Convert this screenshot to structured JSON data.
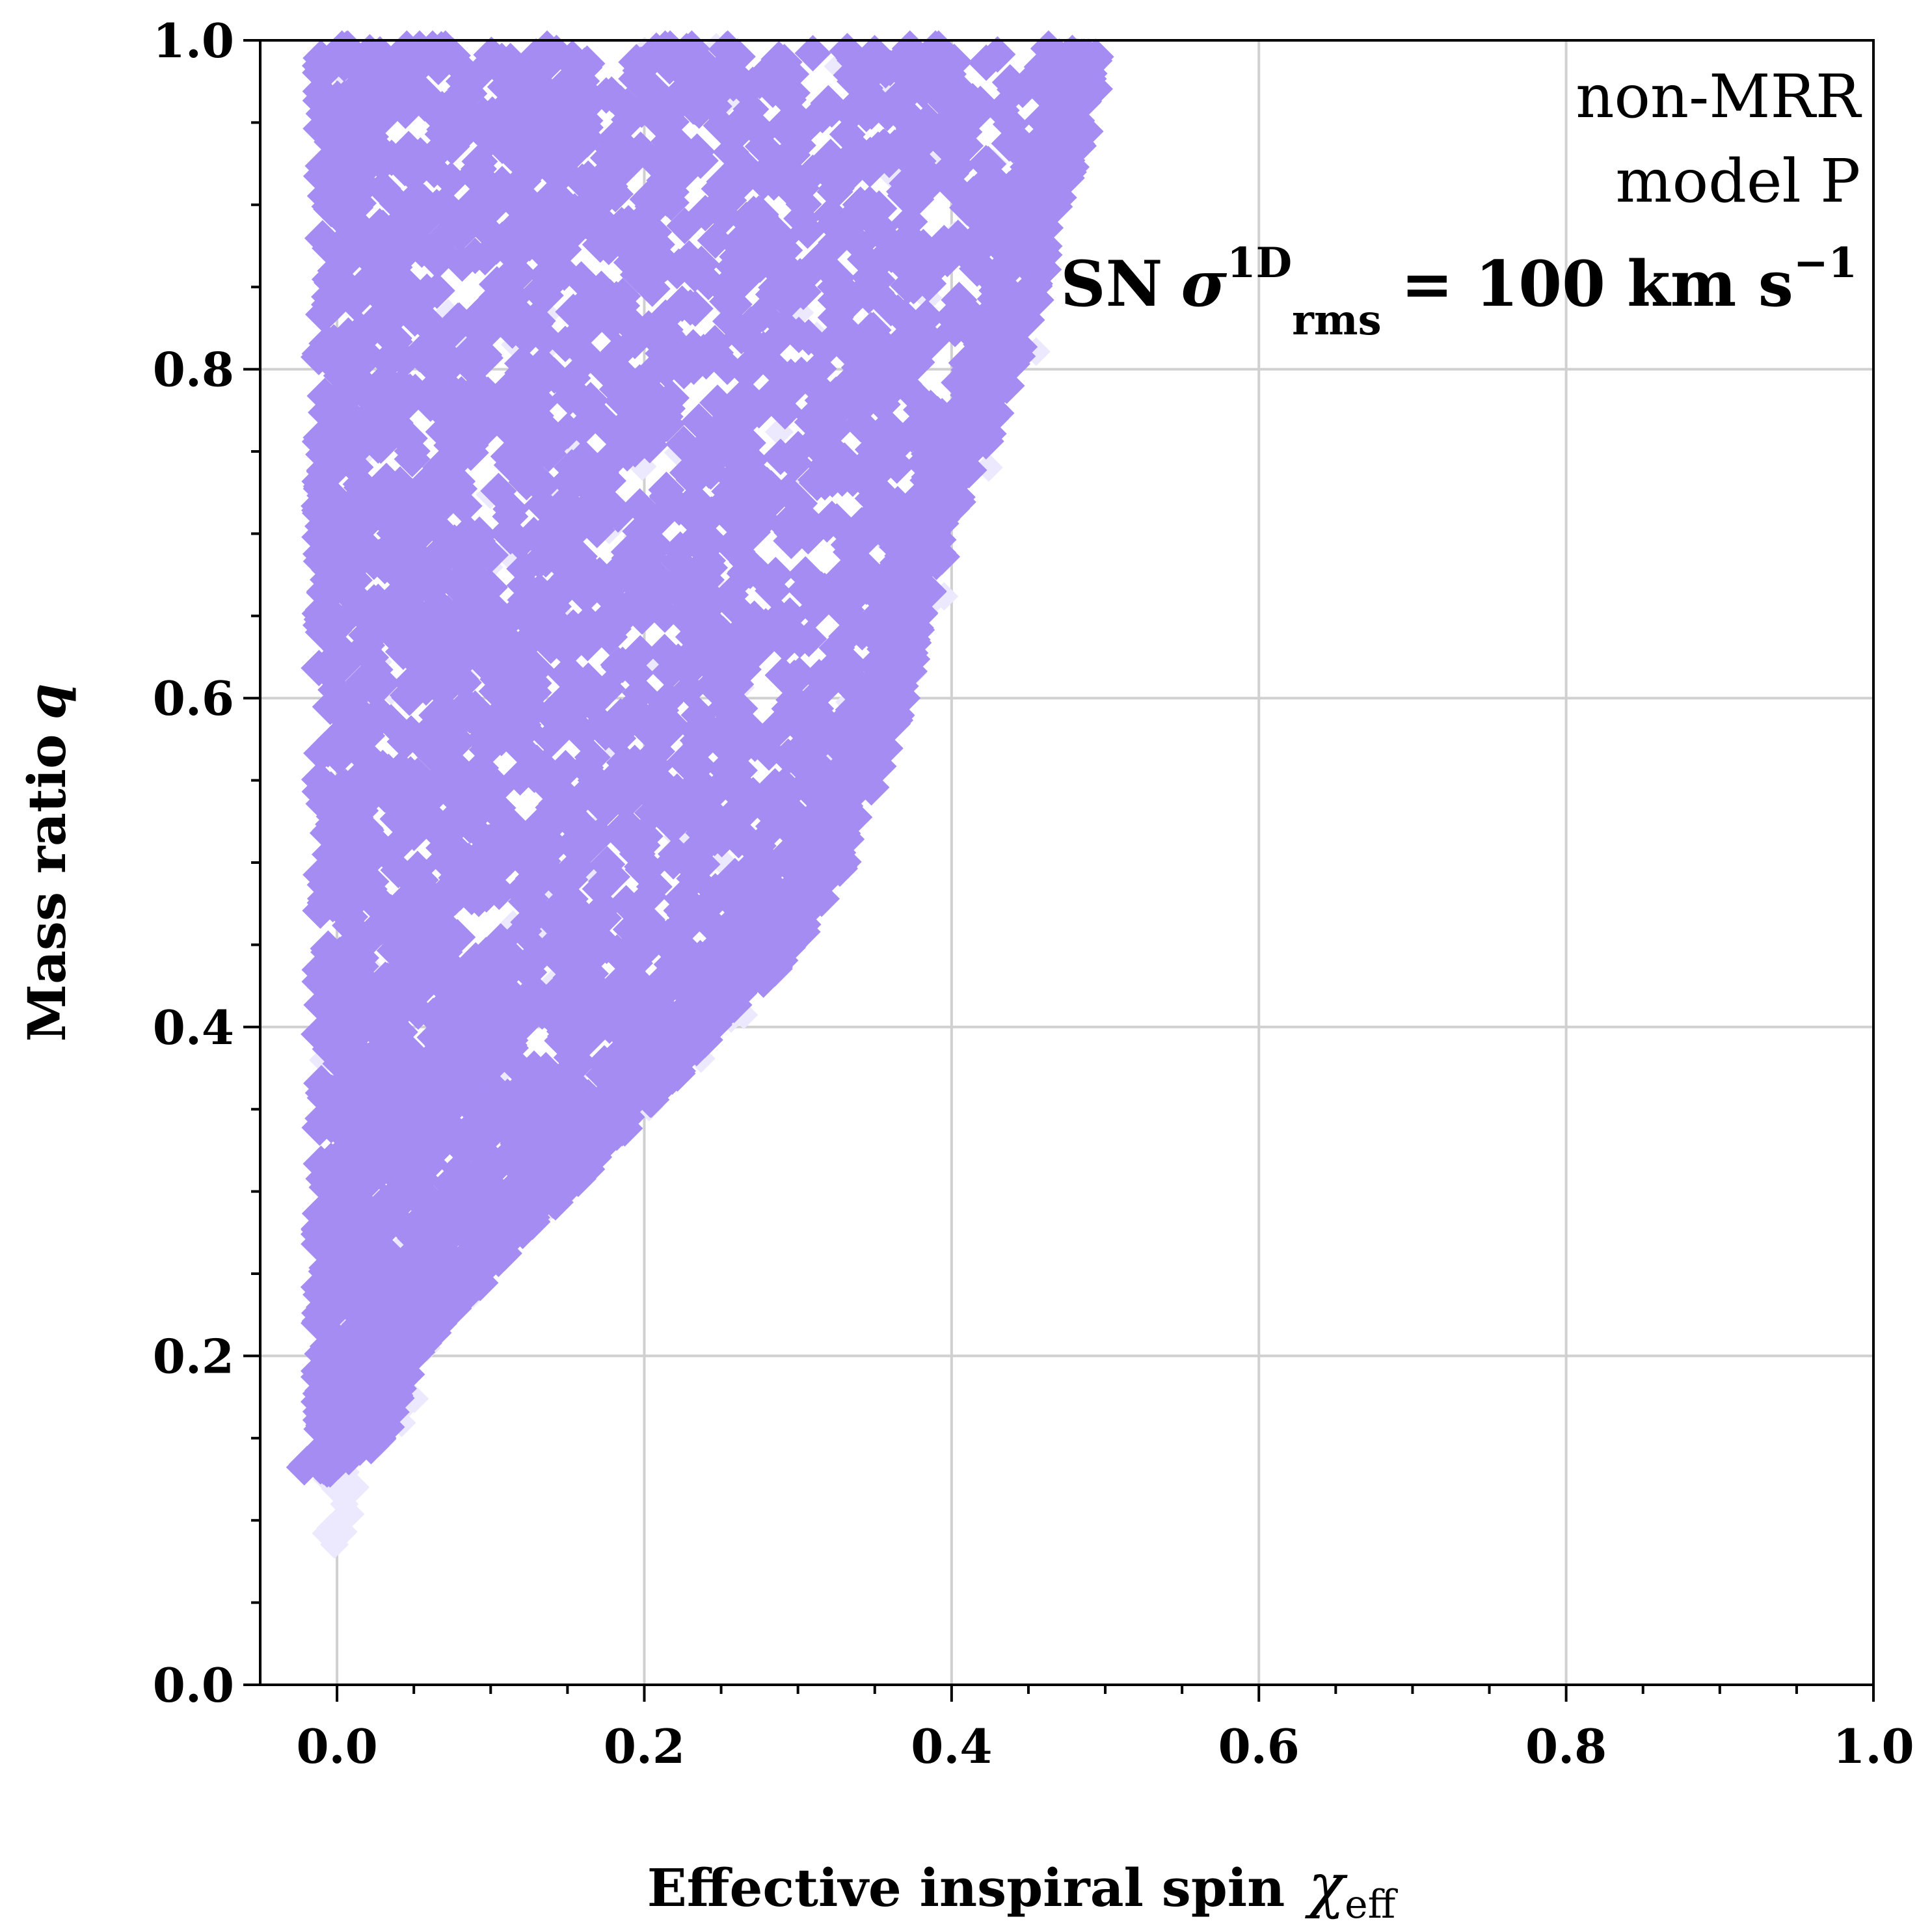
{
  "chart_data": {
    "type": "scatter",
    "title": "",
    "xlabel": "Effective inspiral spin",
    "xlabel_symbol": "χ",
    "xlabel_subscript": "eff",
    "ylabel": "Mass ratio",
    "ylabel_symbol": "q",
    "xlim": [
      -0.05,
      1.0
    ],
    "ylim": [
      0.0,
      1.0
    ],
    "x_ticks": [
      "0.0",
      "0.2",
      "0.4",
      "0.6",
      "0.8",
      "1.0"
    ],
    "y_ticks": [
      "0.0",
      "0.2",
      "0.4",
      "0.6",
      "0.8",
      "1.0"
    ],
    "grid": true,
    "marker": "diamond",
    "point_color": "#a48cf3",
    "faint_color": "#ece8fd",
    "region_boundary": {
      "description_free": true,
      "q": [
        0.13,
        0.15,
        0.2,
        0.25,
        0.3,
        0.35,
        0.4,
        0.45,
        0.5,
        0.55,
        0.6,
        0.65,
        0.7,
        0.75,
        0.8,
        0.85,
        0.9,
        0.95,
        1.0
      ],
      "chi_max": [
        0.0,
        0.03,
        0.05,
        0.1,
        0.15,
        0.2,
        0.25,
        0.3,
        0.33,
        0.35,
        0.37,
        0.38,
        0.4,
        0.42,
        0.44,
        0.46,
        0.47,
        0.49,
        0.5
      ]
    },
    "annotations": {
      "line1": "non-MRR",
      "line2": "model P",
      "line3_prefix": "SN",
      "line3_symbol": "σ",
      "line3_sup": "1D",
      "line3_sub": "rms",
      "line3_value": "= 100 km s",
      "line3_exp": "−1"
    }
  }
}
